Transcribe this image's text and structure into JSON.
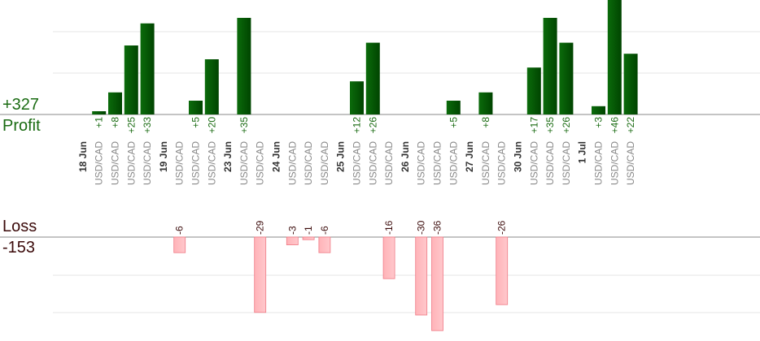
{
  "summary": {
    "profit_total": "+327",
    "profit_label": "Profit",
    "loss_label": "Loss",
    "loss_total": "-153"
  },
  "colors": {
    "profit_bar": "#0b6b0b",
    "profit_bar_dark": "#004400",
    "loss_bar": "#ffb3b8",
    "loss_bar_edge": "#f07a85",
    "profit_text": "#1a6b12",
    "loss_text": "#3b0a0a",
    "pair_text": "#888888",
    "date_text": "#333333",
    "grid": "#e6e6e6",
    "axis": "#888888"
  },
  "chart_data": {
    "type": "bar",
    "grid": true,
    "profit_ylim": [
      0,
      50
    ],
    "loss_ylim": [
      -40,
      0
    ],
    "date_groups": [
      {
        "date": "18 Jun",
        "trades": [
          {
            "pair": "USD/CAD",
            "value": 1
          },
          {
            "pair": "USD/CAD",
            "value": 8
          },
          {
            "pair": "USD/CAD",
            "value": 25
          },
          {
            "pair": "USD/CAD",
            "value": 33
          }
        ]
      },
      {
        "date": "19 Jun",
        "trades": [
          {
            "pair": "USD/CAD",
            "value": -6
          },
          {
            "pair": "USD/CAD",
            "value": 5
          },
          {
            "pair": "USD/CAD",
            "value": 20
          }
        ]
      },
      {
        "date": "23 Jun",
        "trades": [
          {
            "pair": "USD/CAD",
            "value": 35
          },
          {
            "pair": "USD/CAD",
            "value": -29
          }
        ]
      },
      {
        "date": "24 Jun",
        "trades": [
          {
            "pair": "USD/CAD",
            "value": -3
          },
          {
            "pair": "USD/CAD",
            "value": -1
          },
          {
            "pair": "USD/CAD",
            "value": -6
          }
        ]
      },
      {
        "date": "25 Jun",
        "trades": [
          {
            "pair": "USD/CAD",
            "value": 12
          },
          {
            "pair": "USD/CAD",
            "value": 26
          },
          {
            "pair": "USD/CAD",
            "value": -16
          }
        ]
      },
      {
        "date": "26 Jun",
        "trades": [
          {
            "pair": "USD/CAD",
            "value": -30
          },
          {
            "pair": "USD/CAD",
            "value": -36
          },
          {
            "pair": "USD/CAD",
            "value": 5
          }
        ]
      },
      {
        "date": "27 Jun",
        "trades": [
          {
            "pair": "USD/CAD",
            "value": 8
          },
          {
            "pair": "USD/CAD",
            "value": -26
          }
        ]
      },
      {
        "date": "30 Jun",
        "trades": [
          {
            "pair": "USD/CAD",
            "value": 17
          },
          {
            "pair": "USD/CAD",
            "value": 35
          },
          {
            "pair": "USD/CAD",
            "value": 26
          }
        ]
      },
      {
        "date": "1 Jul",
        "trades": [
          {
            "pair": "USD/CAD",
            "value": 3
          },
          {
            "pair": "USD/CAD",
            "value": 46
          },
          {
            "pair": "USD/CAD",
            "value": 22
          }
        ]
      }
    ]
  }
}
